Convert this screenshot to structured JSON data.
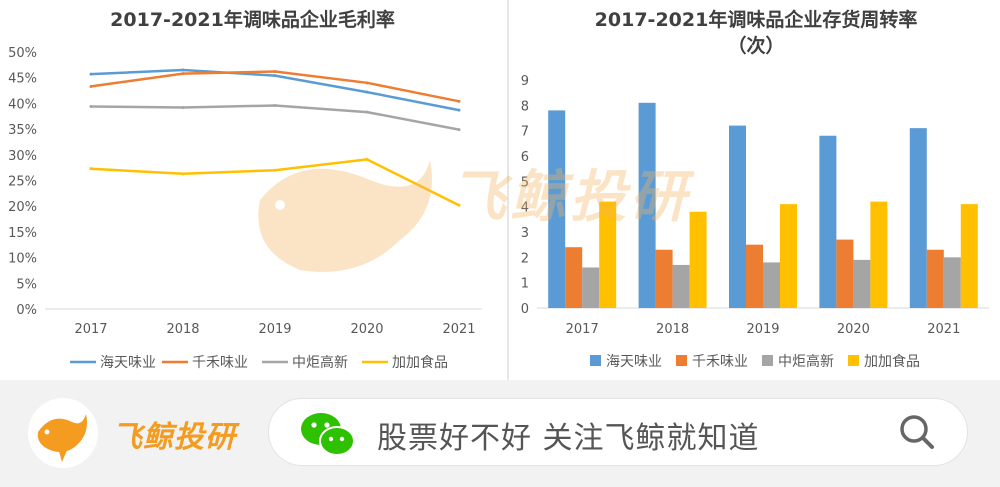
{
  "chart_data": [
    {
      "type": "line",
      "title": "2017-2021年调味品企业毛利率",
      "categories": [
        "2017",
        "2018",
        "2019",
        "2020",
        "2021"
      ],
      "y_ticks": [
        "0%",
        "5%",
        "10%",
        "15%",
        "20%",
        "25%",
        "30%",
        "35%",
        "40%",
        "45%",
        "50%"
      ],
      "ylim": [
        0,
        50
      ],
      "legend_position": "bottom",
      "grid": false,
      "series": [
        {
          "name": "海天味业",
          "color": "#5b9bd5",
          "values": [
            45.7,
            46.5,
            45.4,
            42.2,
            38.7
          ]
        },
        {
          "name": "千禾味业",
          "color": "#ed7d31",
          "values": [
            43.3,
            45.8,
            46.2,
            44.0,
            40.4
          ]
        },
        {
          "name": "中炬高新",
          "color": "#a5a5a5",
          "values": [
            39.4,
            39.2,
            39.6,
            38.3,
            34.9
          ]
        },
        {
          "name": "加加食品",
          "color": "#ffc000",
          "values": [
            27.3,
            26.3,
            27.0,
            29.1,
            20.2
          ]
        }
      ]
    },
    {
      "type": "bar",
      "title": "2017-2021年调味品企业存货周转率（次）",
      "title_line1": "2017-2021年调味品企业存货周转率",
      "title_line2": "（次）",
      "categories": [
        "2017",
        "2018",
        "2019",
        "2020",
        "2021"
      ],
      "y_ticks": [
        "0",
        "1",
        "2",
        "3",
        "4",
        "5",
        "6",
        "7",
        "8",
        "9"
      ],
      "ylim": [
        0,
        9
      ],
      "legend_position": "bottom",
      "grid": false,
      "series": [
        {
          "name": "海天味业",
          "color": "#5b9bd5",
          "values": [
            7.8,
            8.1,
            7.2,
            6.8,
            7.1
          ]
        },
        {
          "name": "千禾味业",
          "color": "#ed7d31",
          "values": [
            2.4,
            2.3,
            2.5,
            2.7,
            2.3
          ]
        },
        {
          "name": "中炬高新",
          "color": "#a5a5a5",
          "values": [
            1.6,
            1.7,
            1.8,
            1.9,
            2.0
          ]
        },
        {
          "name": "加加食品",
          "color": "#ffc000",
          "values": [
            4.2,
            3.8,
            4.1,
            4.2,
            4.1
          ]
        }
      ]
    }
  ],
  "watermark": {
    "text": "飞鲸投研"
  },
  "footer": {
    "brand": "飞鲸投研",
    "search_text": "股票好不好 关注飞鲸就知道",
    "icons": {
      "logo": "whale-logo-icon",
      "wechat": "wechat-icon",
      "search": "search-icon"
    }
  }
}
